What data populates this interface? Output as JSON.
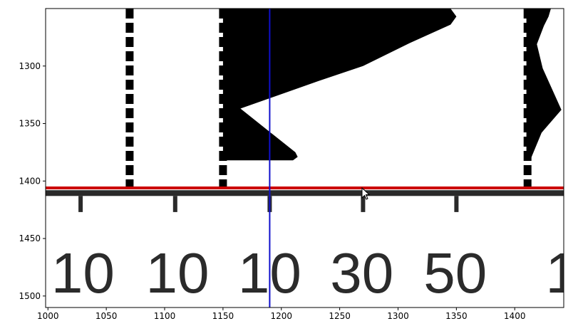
{
  "chart_data": {
    "type": "image",
    "xlim": [
      998,
      1442
    ],
    "ylim": [
      1510,
      1250
    ],
    "x_ticks": [
      {
        "value": 1000,
        "label": "1000"
      },
      {
        "value": 1050,
        "label": "1050"
      },
      {
        "value": 1100,
        "label": "1100"
      },
      {
        "value": 1150,
        "label": "1150"
      },
      {
        "value": 1200,
        "label": "1200"
      },
      {
        "value": 1250,
        "label": "1250"
      },
      {
        "value": 1300,
        "label": "1300"
      },
      {
        "value": 1350,
        "label": "1350"
      },
      {
        "value": 1400,
        "label": "1400"
      }
    ],
    "y_ticks": [
      {
        "value": 1300,
        "label": "1300"
      },
      {
        "value": 1350,
        "label": "1350"
      },
      {
        "value": 1400,
        "label": "1400"
      },
      {
        "value": 1450,
        "label": "1450"
      },
      {
        "value": 1500,
        "label": "1500"
      }
    ],
    "vertical_cursor_x": 1190,
    "horizontal_marker_y": 1406,
    "scale_bar": {
      "y_top": 1408,
      "y_bottom": 1413,
      "tick_positions": [
        1028,
        1109,
        1190,
        1270,
        1350
      ],
      "tick_bottom": 1427
    },
    "scale_numbers": [
      {
        "text": "10",
        "x": 1030
      },
      {
        "text": "10",
        "x": 1111
      },
      {
        "text": "10",
        "x": 1190
      },
      {
        "text": "30",
        "x": 1269
      },
      {
        "text": "50",
        "x": 1349
      },
      {
        "text": "1",
        "x": 1440
      }
    ],
    "scale_numbers_y": 1497,
    "dashed_tracks": [
      1070,
      1150,
      1411
    ],
    "dashed_track_range": [
      1250,
      1412
    ],
    "black_shapes": [
      [
        [
          1150,
          1250
        ],
        [
          1345,
          1250
        ],
        [
          1350,
          1257
        ],
        [
          1345,
          1264
        ],
        [
          1310,
          1280
        ],
        [
          1270,
          1300
        ],
        [
          1232,
          1313
        ],
        [
          1165,
          1337
        ],
        [
          1212,
          1375
        ],
        [
          1214,
          1379
        ],
        [
          1210,
          1382
        ],
        [
          1150,
          1382
        ]
      ],
      [
        [
          1410,
          1250
        ],
        [
          1431,
          1250
        ],
        [
          1429,
          1257
        ],
        [
          1425,
          1265
        ],
        [
          1419,
          1281
        ],
        [
          1424,
          1302
        ],
        [
          1440,
          1338
        ],
        [
          1423,
          1358
        ],
        [
          1414,
          1380
        ],
        [
          1410,
          1380
        ]
      ]
    ],
    "colors": {
      "cursor_line": "#1010cc",
      "marker_line": "#cc0000",
      "scale_bar": "#2a2a2a",
      "shape_fill": "#000000"
    }
  }
}
